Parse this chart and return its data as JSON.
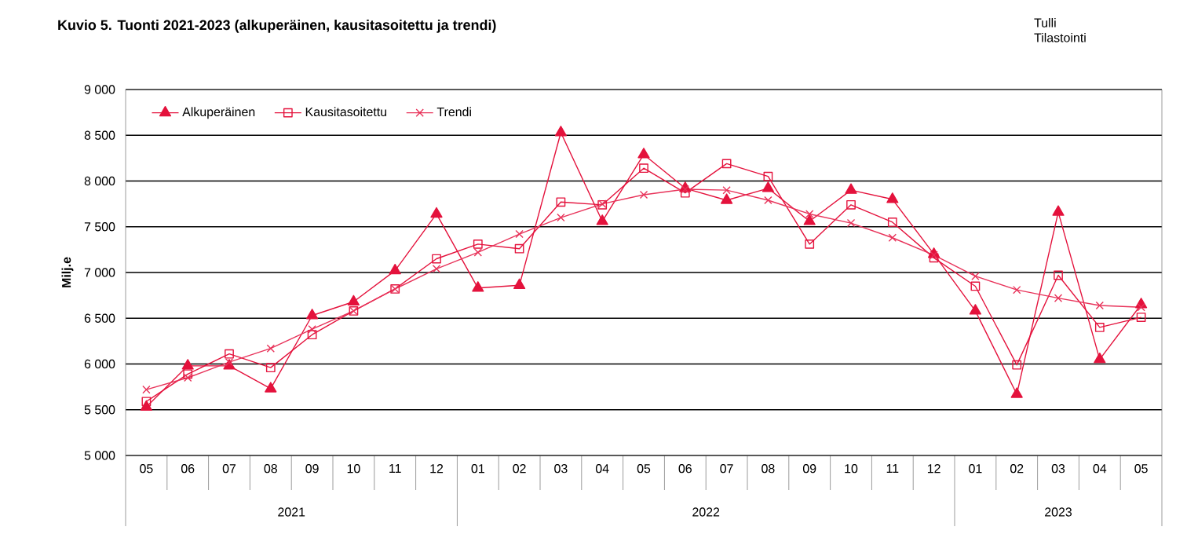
{
  "chart_data": {
    "type": "line",
    "title": "Kuvio 5. Tuonti 2021-2023  (alkuperäinen, kausitasoitettu  ja trendi)",
    "ylabel": "Milj.e",
    "annotations": [
      "Tulli",
      "Tilastointi",
      "2021",
      "2022",
      "2023"
    ],
    "categories": [
      "05",
      "06",
      "07",
      "08",
      "09",
      "10",
      "11",
      "12",
      "01",
      "02",
      "03",
      "04",
      "05",
      "06",
      "07",
      "08",
      "09",
      "10",
      "11",
      "12",
      "01",
      "02",
      "03",
      "04",
      "05"
    ],
    "series": [
      {
        "name": "Alkuperäinen",
        "color": "#e4123c",
        "marker": "triangle",
        "values": [
          5530,
          5980,
          5980,
          5730,
          6530,
          6680,
          7020,
          7640,
          6830,
          6860,
          8530,
          7560,
          8290,
          7920,
          7790,
          7920,
          7560,
          7900,
          7800,
          7200,
          6580,
          5670,
          7660,
          6050,
          6650
        ]
      },
      {
        "name": "Kausitasoitettu",
        "color": "#e4123c",
        "marker": "square",
        "values": [
          5590,
          5890,
          6110,
          5960,
          6320,
          6580,
          6820,
          7150,
          7310,
          7260,
          7770,
          7740,
          8140,
          7870,
          8190,
          8050,
          7310,
          7740,
          7550,
          7160,
          6850,
          5990,
          6970,
          6400,
          6510
        ]
      },
      {
        "name": "Trendi",
        "color": "#e8335a",
        "marker": "cross",
        "values": [
          5720,
          5850,
          6020,
          6170,
          6380,
          6580,
          6820,
          7040,
          7220,
          7420,
          7600,
          7750,
          7850,
          7910,
          7900,
          7790,
          7640,
          7540,
          7380,
          7190,
          6960,
          6810,
          6720,
          6640,
          6620
        ]
      }
    ],
    "ylim": [
      5000,
      9000
    ],
    "yticks": [
      {
        "value": 5000,
        "label": "5 000"
      },
      {
        "value": 5500,
        "label": "5 500"
      },
      {
        "value": 6000,
        "label": "6 000"
      },
      {
        "value": 6500,
        "label": "6 500"
      },
      {
        "value": 7000,
        "label": "7 000"
      },
      {
        "value": 7500,
        "label": "7 500"
      },
      {
        "value": 8000,
        "label": "8 000"
      },
      {
        "value": 8500,
        "label": "8 500"
      },
      {
        "value": 9000,
        "label": "9 000"
      }
    ],
    "grid": "y",
    "legend": "top left",
    "line_style": "solid"
  }
}
